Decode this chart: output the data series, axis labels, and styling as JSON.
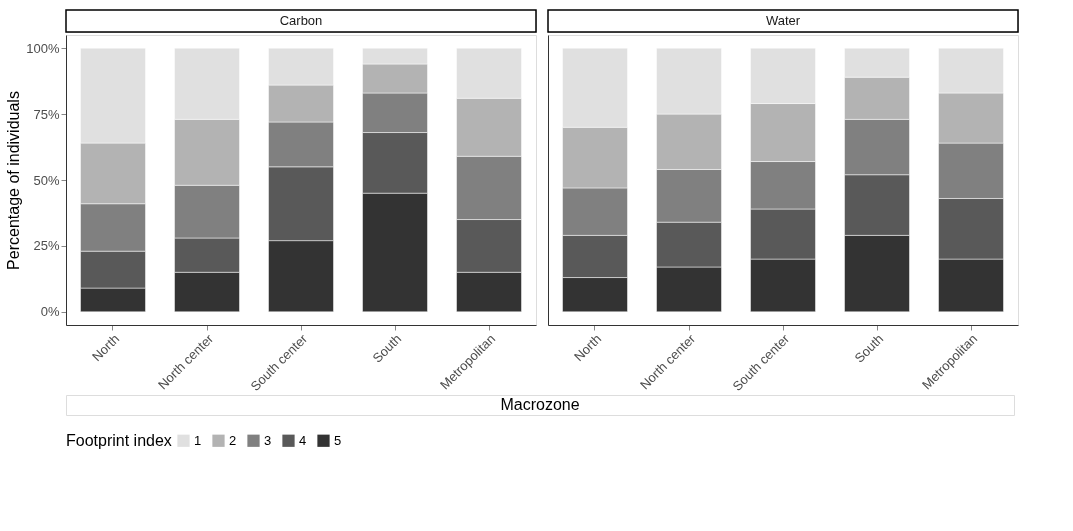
{
  "chart_data": [
    {
      "type": "bar",
      "title": "Carbon",
      "stacked": true,
      "ylabel": "Percentage of individuals",
      "xlabel": "Macrozone",
      "legend_title": "Footprint index",
      "legend": "bottom",
      "categories": [
        "North",
        "North center",
        "South center",
        "South",
        "Metropolitan"
      ],
      "ylim": [
        -5,
        105
      ],
      "yticks": [
        {
          "value": 0,
          "label": "0%"
        },
        {
          "value": 25,
          "label": "25%"
        },
        {
          "value": 50,
          "label": "50%"
        },
        {
          "value": 75,
          "label": "75%"
        },
        {
          "value": 100,
          "label": "100%"
        }
      ],
      "series": [
        {
          "name": "5",
          "color": "#333333",
          "values": [
            9,
            15,
            27,
            45,
            15
          ]
        },
        {
          "name": "4",
          "color": "#595959",
          "values": [
            14,
            13,
            28,
            23,
            20
          ]
        },
        {
          "name": "3",
          "color": "#808080",
          "values": [
            18,
            20,
            17,
            15,
            24
          ]
        },
        {
          "name": "2",
          "color": "#b3b3b3",
          "values": [
            23,
            25,
            14,
            11,
            22
          ]
        },
        {
          "name": "1",
          "color": "#e0e0e0",
          "values": [
            36,
            27,
            14,
            6,
            19
          ]
        }
      ]
    },
    {
      "type": "bar",
      "title": "Water",
      "stacked": true,
      "tick_labels": "x",
      "categories": [
        "North",
        "North center",
        "South center",
        "South",
        "Metropolitan"
      ],
      "ylim": [
        -5,
        105
      ],
      "series": [
        {
          "name": "5",
          "color": "#333333",
          "values": [
            13,
            17,
            20,
            29,
            20
          ]
        },
        {
          "name": "4",
          "color": "#595959",
          "values": [
            16,
            17,
            19,
            23,
            23
          ]
        },
        {
          "name": "3",
          "color": "#808080",
          "values": [
            18,
            20,
            18,
            21,
            21
          ]
        },
        {
          "name": "2",
          "color": "#b3b3b3",
          "values": [
            23,
            21,
            22,
            16,
            19
          ]
        },
        {
          "name": "1",
          "color": "#e0e0e0",
          "values": [
            30,
            25,
            21,
            11,
            17
          ]
        }
      ]
    }
  ]
}
